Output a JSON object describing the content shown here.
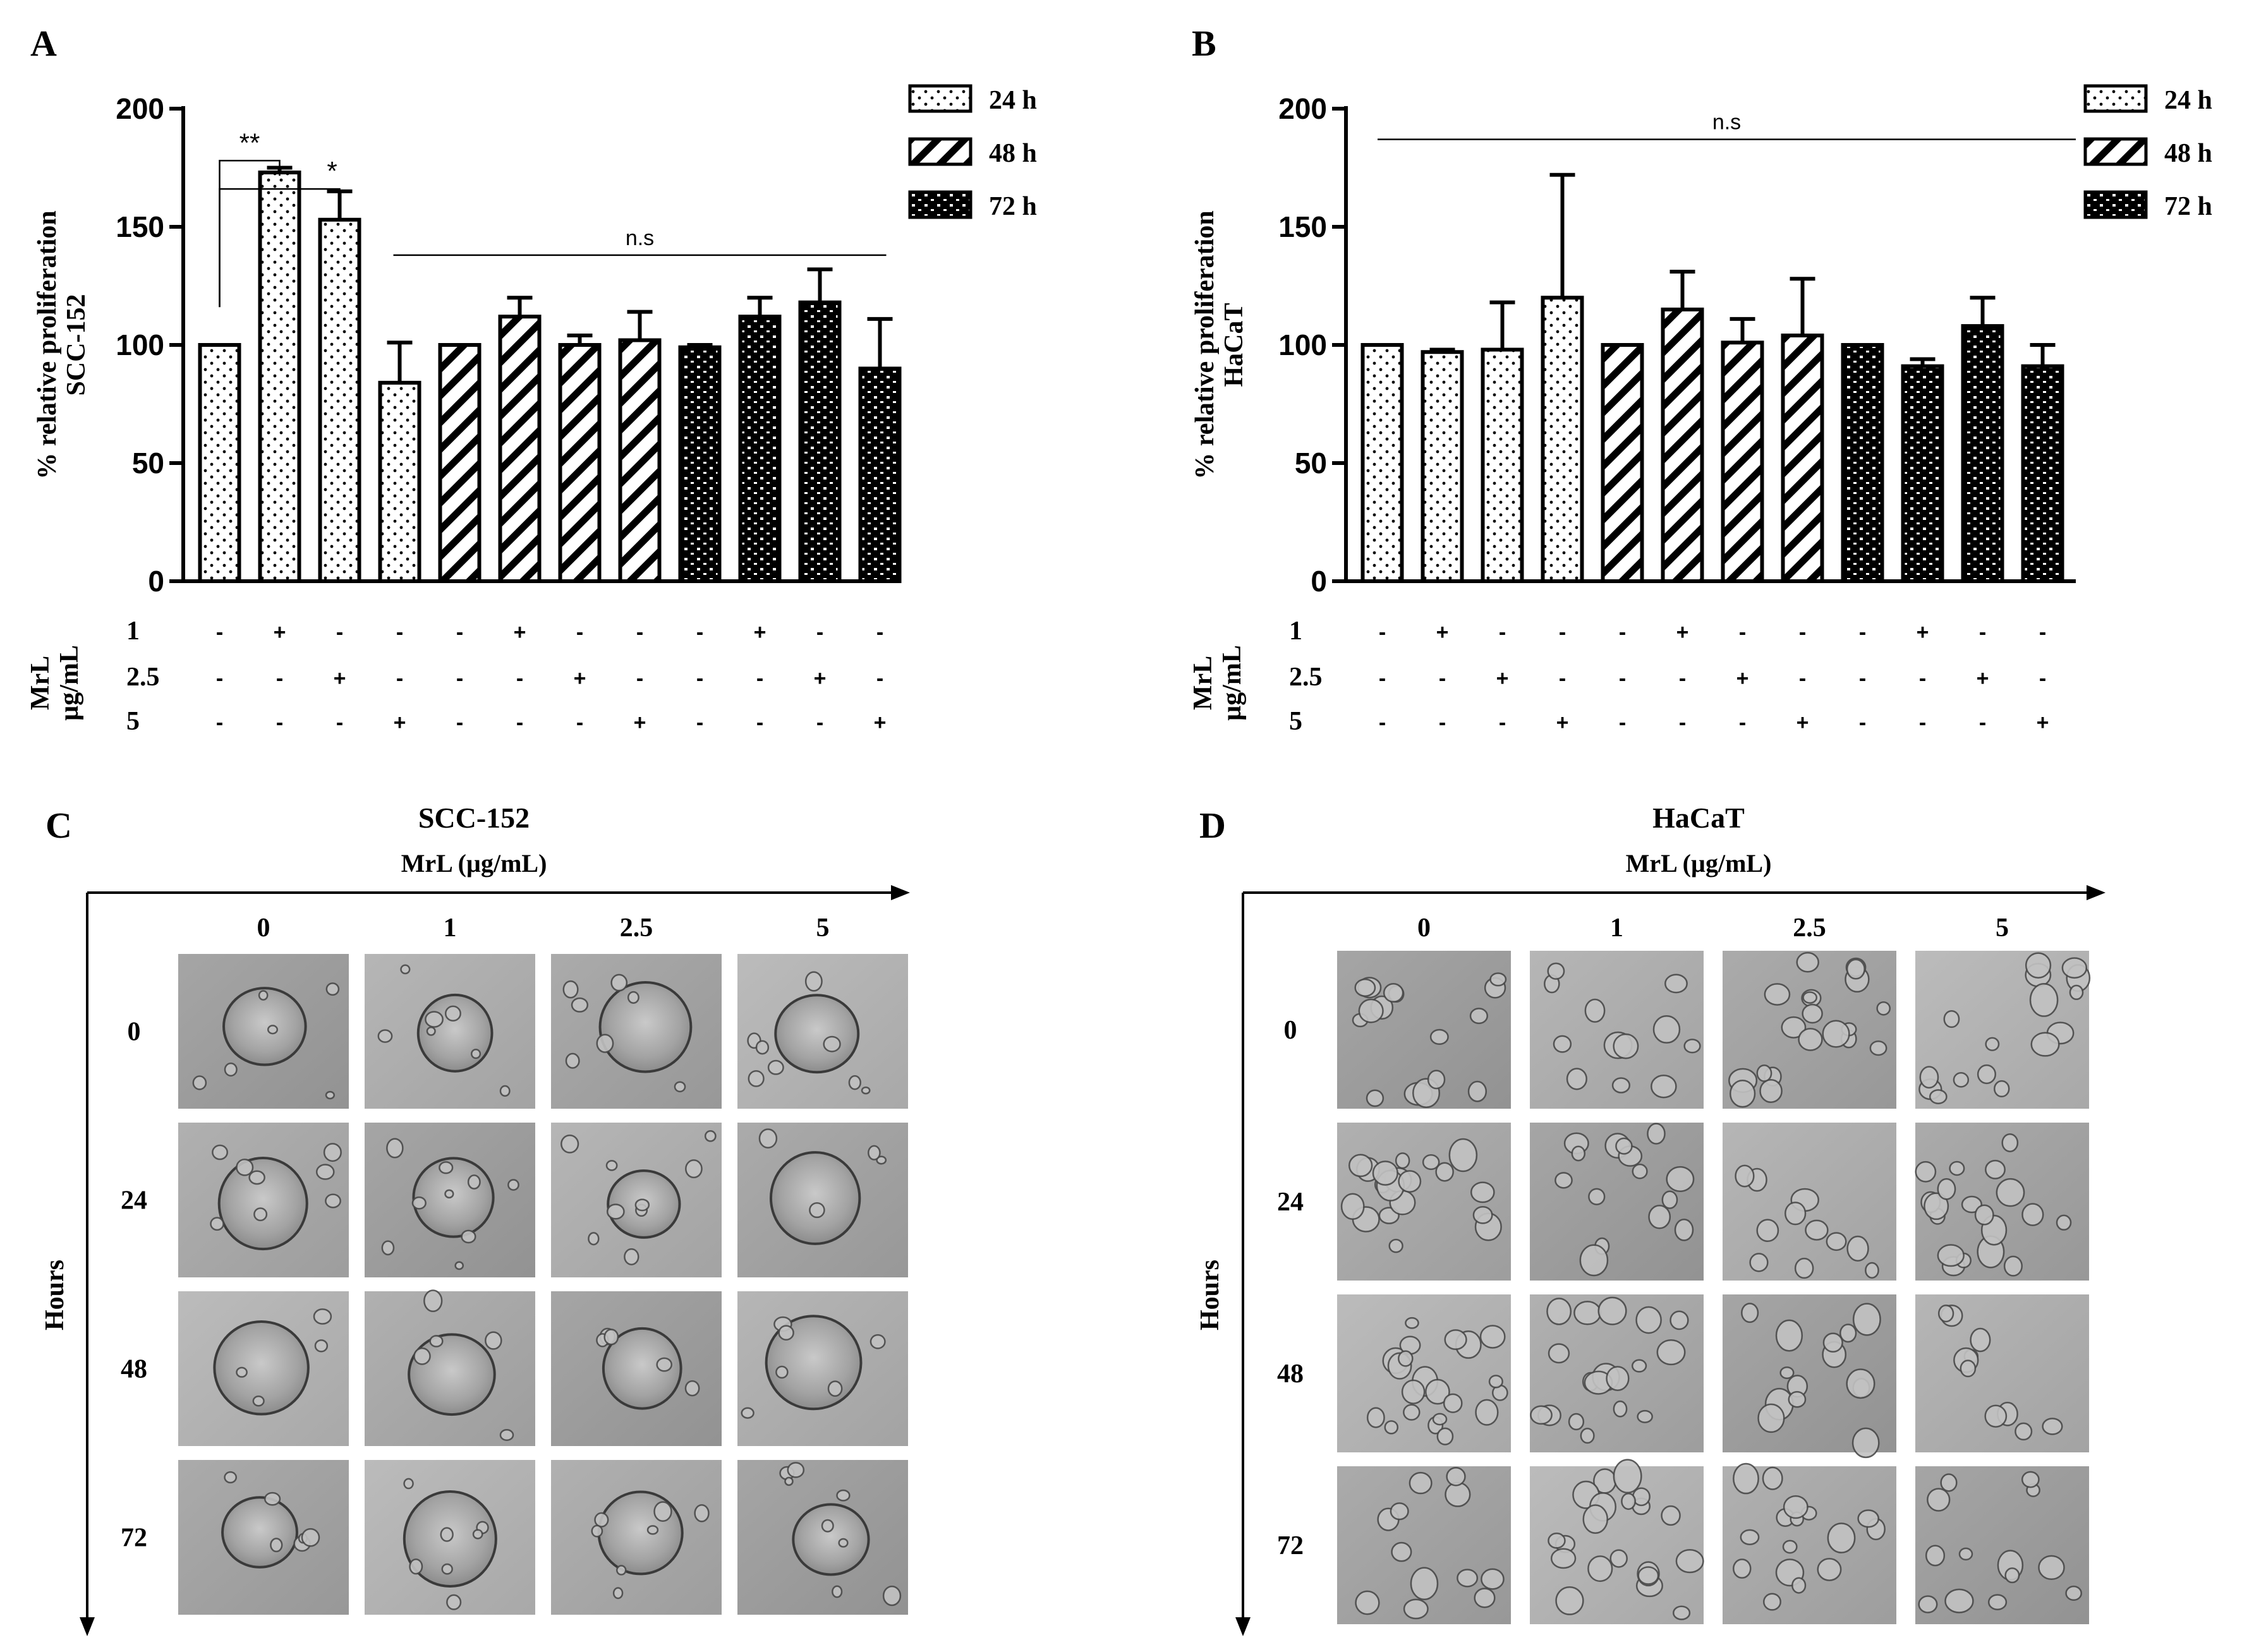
{
  "panels": {
    "A": "A",
    "B": "B",
    "C": "C",
    "D": "D"
  },
  "legend": [
    {
      "label": "24 h",
      "pattern": "dots"
    },
    {
      "label": "48 h",
      "pattern": "hatch"
    },
    {
      "label": "72 h",
      "pattern": "grid"
    }
  ],
  "treatment": {
    "group_label_1": "MrL",
    "group_label_2": "µg/mL",
    "dose_labels": [
      "1",
      "2.5",
      "5"
    ]
  },
  "chart_data": [
    {
      "type": "bar",
      "panel": "A",
      "ylabel_line1": "% relative proliferation",
      "ylabel_line2": "SCC-152",
      "ylim": [
        0,
        200
      ],
      "yticks": [
        0,
        50,
        100,
        150,
        200
      ],
      "grid": false,
      "legend_position": "top-right",
      "categories": [
        "0 µg/mL 24 h",
        "1 µg/mL 24 h",
        "2.5 µg/mL 24 h",
        "5 µg/mL 24 h",
        "0 µg/mL 48 h",
        "1 µg/mL 48 h",
        "2.5 µg/mL 48 h",
        "5 µg/mL 48 h",
        "0 µg/mL 72 h",
        "1 µg/mL 72 h",
        "2.5 µg/mL 72 h",
        "5 µg/mL 72 h"
      ],
      "values": [
        100,
        173,
        153,
        84,
        100,
        112,
        100,
        102,
        99,
        112,
        118,
        90
      ],
      "errors": [
        0,
        2,
        12,
        17,
        0,
        8,
        4,
        12,
        1,
        8,
        14,
        21
      ],
      "time_group": [
        0,
        0,
        0,
        0,
        1,
        1,
        1,
        1,
        2,
        2,
        2,
        2
      ],
      "signs": [
        [
          "-",
          "+",
          "-",
          "-",
          "-",
          "+",
          "-",
          "-",
          "-",
          "+",
          "-",
          "-"
        ],
        [
          "-",
          "-",
          "+",
          "-",
          "-",
          "-",
          "+",
          "-",
          "-",
          "-",
          "+",
          "-"
        ],
        [
          "-",
          "-",
          "-",
          "+",
          "-",
          "-",
          "-",
          "+",
          "-",
          "-",
          "-",
          "+"
        ]
      ],
      "annotations": [
        {
          "text": "**",
          "from": 0,
          "to": 1,
          "y": 178
        },
        {
          "text": "*",
          "from": 0,
          "to": 2,
          "y": 166
        }
      ],
      "ns_line": {
        "text": "n.s",
        "from": 3,
        "to": 11,
        "y": 138
      }
    },
    {
      "type": "bar",
      "panel": "B",
      "ylabel_line1": "% relative proliferation",
      "ylabel_line2": "HaCaT",
      "ylim": [
        0,
        200
      ],
      "yticks": [
        0,
        50,
        100,
        150,
        200
      ],
      "grid": false,
      "legend_position": "top-right",
      "categories": [
        "0 µg/mL 24 h",
        "1 µg/mL 24 h",
        "2.5 µg/mL 24 h",
        "5 µg/mL 24 h",
        "0 µg/mL 48 h",
        "1 µg/mL 48 h",
        "2.5 µg/mL 48 h",
        "5 µg/mL 48 h",
        "0 µg/mL 72 h",
        "1 µg/mL 72 h",
        "2.5 µg/mL 72 h",
        "5 µg/mL 72 h"
      ],
      "values": [
        100,
        97,
        98,
        120,
        100,
        115,
        101,
        104,
        100,
        91,
        108,
        91
      ],
      "errors": [
        0,
        1,
        20,
        52,
        0,
        16,
        10,
        24,
        0,
        3,
        12,
        9
      ],
      "time_group": [
        0,
        0,
        0,
        0,
        1,
        1,
        1,
        1,
        2,
        2,
        2,
        2
      ],
      "signs": [
        [
          "-",
          "+",
          "-",
          "-",
          "-",
          "+",
          "-",
          "-",
          "-",
          "+",
          "-",
          "-"
        ],
        [
          "-",
          "-",
          "+",
          "-",
          "-",
          "-",
          "+",
          "-",
          "-",
          "-",
          "+",
          "-"
        ],
        [
          "-",
          "-",
          "-",
          "+",
          "-",
          "-",
          "-",
          "+",
          "-",
          "-",
          "-",
          "+"
        ]
      ],
      "annotations": [],
      "ns_line": {
        "text": "n.s",
        "from": 0,
        "to": 11,
        "y": 187
      }
    }
  ],
  "image_grids": [
    {
      "panel": "C",
      "title": "SCC-152",
      "xlabel": "MrL (µg/mL)",
      "ylabel": "Hours",
      "columns": [
        "0",
        "1",
        "2.5",
        "5"
      ],
      "rows": [
        "0",
        "24",
        "48",
        "72"
      ]
    },
    {
      "panel": "D",
      "title": "HaCaT",
      "xlabel": "MrL (µg/mL)",
      "ylabel": "Hours",
      "columns": [
        "0",
        "1",
        "2.5",
        "5"
      ],
      "rows": [
        "0",
        "24",
        "48",
        "72"
      ]
    }
  ]
}
